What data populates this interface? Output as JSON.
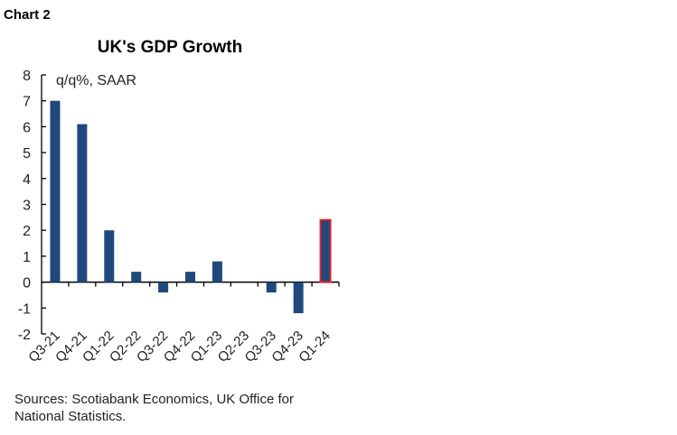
{
  "chart_label": "Chart 2",
  "sources": "Sources: Scotiabank Economics, UK Office for National Statistics.",
  "chart_data": {
    "type": "bar",
    "title": "UK's GDP Growth",
    "ylabel": "q/q%, SAAR",
    "xlabel": "",
    "categories": [
      "Q3-21",
      "Q4-21",
      "Q1-22",
      "Q2-22",
      "Q3-22",
      "Q4-22",
      "Q1-23",
      "Q2-23",
      "Q3-23",
      "Q4-23",
      "Q1-24"
    ],
    "values": [
      7.0,
      6.1,
      2.0,
      0.4,
      -0.4,
      0.4,
      0.8,
      0.0,
      -0.4,
      -1.2,
      2.4
    ],
    "ylim": [
      -2,
      8
    ],
    "yticks": [
      -2,
      -1,
      0,
      1,
      2,
      3,
      4,
      5,
      6,
      7,
      8
    ],
    "grid": false,
    "colors": {
      "bar": "#1f497d",
      "highlight_outline": "#e8202a"
    },
    "highlighted_category": "Q1-24"
  }
}
